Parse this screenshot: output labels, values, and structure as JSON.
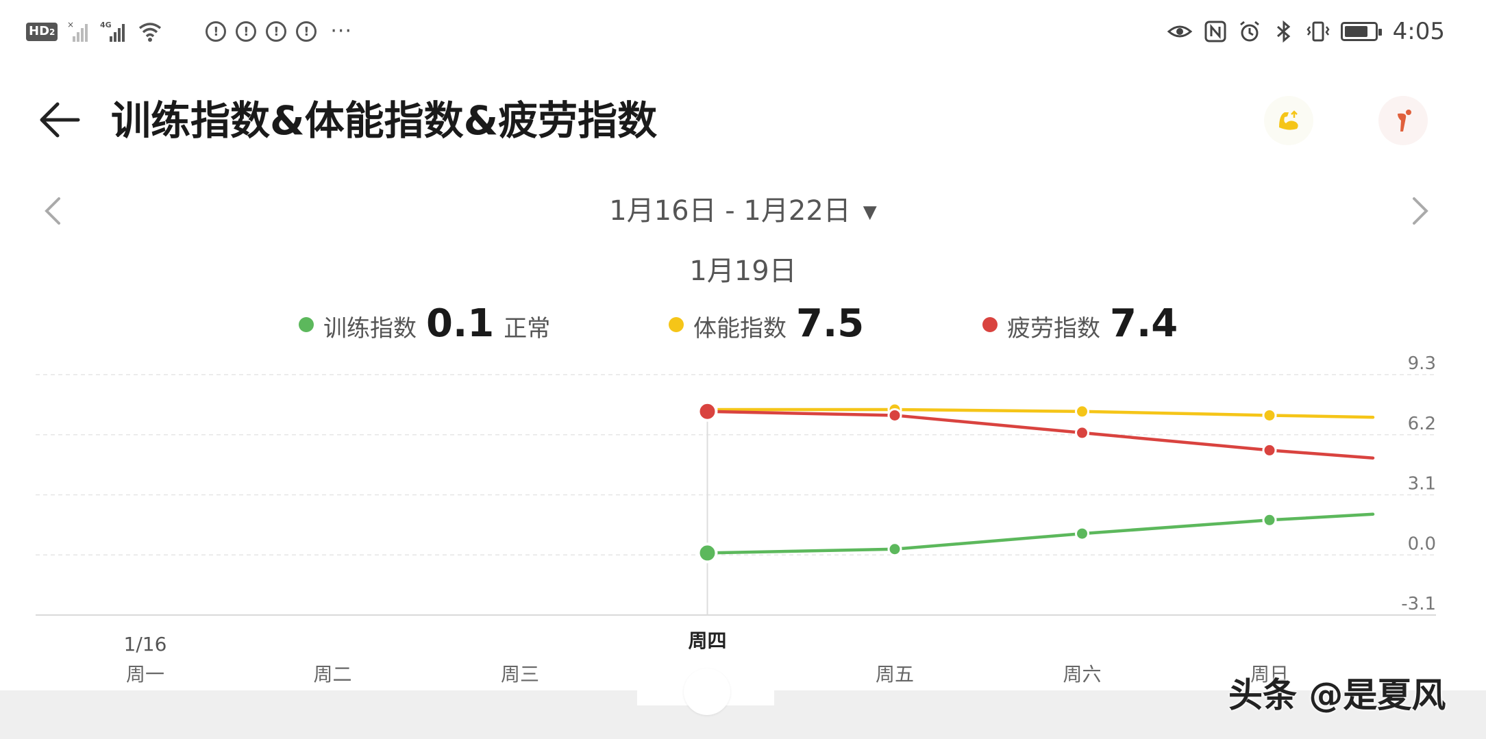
{
  "status_bar": {
    "network_badge": "HD",
    "network_badge_sub": "2",
    "network_type": "4G",
    "alert_icons": [
      "alert-icon",
      "alert-icon",
      "alert-icon",
      "alert-icon"
    ],
    "alert_glyph": "!",
    "more": "···",
    "right_icons": [
      "eye-icon",
      "nfc-icon",
      "alarm-icon",
      "bluetooth-icon",
      "vibrate-icon"
    ],
    "battery_level": 0.8,
    "time": "4:05"
  },
  "header": {
    "title": "训练指数&体能指数&疲劳指数",
    "back_icon": "back-arrow-icon",
    "action_icons": [
      "muscle-icon",
      "body-icon"
    ],
    "colors": {
      "muscle": "#f5c518",
      "body": "#e0603c"
    }
  },
  "date_nav": {
    "range": "1月16日 - 1月22日",
    "selected_date": "1月19日",
    "prev_icon": "chevron-left-icon",
    "next_icon": "chevron-right-icon",
    "dropdown_icon": "caret-down-icon"
  },
  "legend": [
    {
      "label": "训练指数",
      "value": "0.1",
      "status": "正常",
      "color": "#5cb85c"
    },
    {
      "label": "体能指数",
      "value": "7.5",
      "status": "",
      "color": "#f5c518"
    },
    {
      "label": "疲劳指数",
      "value": "7.4",
      "status": "",
      "color": "#d9433f"
    }
  ],
  "chart_data": {
    "type": "line",
    "categories": [
      "周一",
      "周二",
      "周三",
      "周四",
      "周五",
      "周六",
      "周日"
    ],
    "first_date_label": "1/16",
    "selected_index": 3,
    "y_ticks": [
      9.3,
      6.2,
      3.1,
      0.0,
      -3.1
    ],
    "y_tick_labels": [
      "9.3",
      "6.2",
      "3.1",
      "0.0",
      "-3.1"
    ],
    "ylim": [
      -3.1,
      9.3
    ],
    "grid": true,
    "series": [
      {
        "name": "训练指数",
        "color": "#5cb85c",
        "values": [
          null,
          null,
          null,
          0.1,
          0.3,
          1.1,
          1.8
        ],
        "trailing_value": 2.1
      },
      {
        "name": "体能指数",
        "color": "#f5c518",
        "values": [
          null,
          null,
          null,
          7.5,
          7.5,
          7.4,
          7.2
        ],
        "trailing_value": 7.1
      },
      {
        "name": "疲劳指数",
        "color": "#d9433f",
        "values": [
          null,
          null,
          null,
          7.4,
          7.2,
          6.3,
          5.4
        ],
        "trailing_value": 5.0
      }
    ]
  },
  "watermark": "头条 @是夏风"
}
